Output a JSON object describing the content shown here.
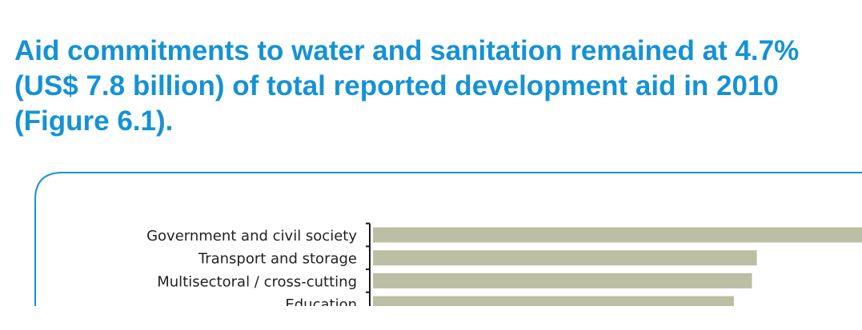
{
  "headline": {
    "text": "Aid commitments to water and sanitation remained at 4.7%\n(US$ 7.8 billion) of total reported development aid in 2010\n(Figure 6.1)."
  },
  "colors": {
    "headline": "#1592d4",
    "frame": "#1592d4",
    "bar": "#bcbfa3",
    "axis": "#1a1a1a",
    "label": "#222222"
  },
  "chart_data": {
    "type": "bar",
    "orientation": "horizontal",
    "categories": [
      "Government and civil society",
      "Transport and storage",
      "Multisectoral / cross-cutting",
      "Education"
    ],
    "values": [
      100,
      78.5,
      77.5,
      73.8
    ],
    "note": "relative values estimated from bar lengths; the first bar extends beyond the visible crop",
    "xlim": [
      0,
      100
    ],
    "grid": false,
    "legend": "none"
  }
}
